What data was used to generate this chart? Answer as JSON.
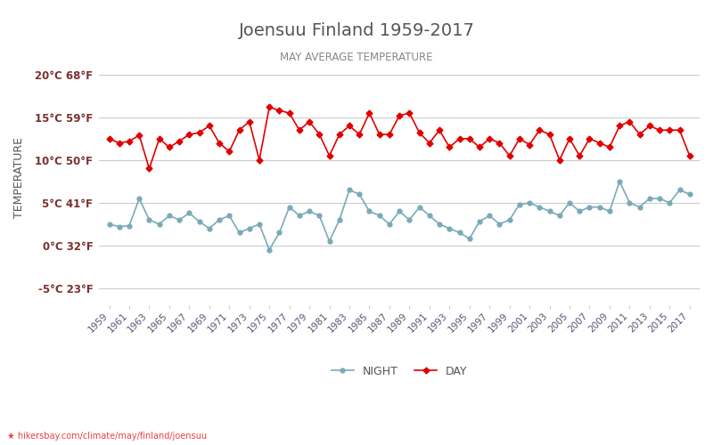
{
  "title": "Joensuu Finland 1959-2017",
  "subtitle": "MAY AVERAGE TEMPERATURE",
  "ylabel": "TEMPERATURE",
  "xlabel_url": "hikersbay.com/climate/may/finland/joensuu",
  "years": [
    1959,
    1960,
    1961,
    1962,
    1963,
    1964,
    1965,
    1966,
    1967,
    1968,
    1969,
    1970,
    1971,
    1972,
    1973,
    1974,
    1975,
    1976,
    1977,
    1978,
    1979,
    1980,
    1981,
    1982,
    1983,
    1984,
    1985,
    1986,
    1987,
    1988,
    1989,
    1990,
    1991,
    1992,
    1993,
    1994,
    1995,
    1996,
    1997,
    1998,
    1999,
    2000,
    2001,
    2002,
    2003,
    2004,
    2005,
    2006,
    2007,
    2008,
    2009,
    2010,
    2011,
    2012,
    2013,
    2014,
    2015,
    2016,
    2017
  ],
  "day_temps": [
    12.5,
    12.0,
    12.2,
    12.9,
    9.0,
    12.5,
    11.5,
    12.2,
    13.0,
    13.2,
    14.0,
    12.0,
    11.0,
    13.5,
    14.5,
    10.0,
    16.2,
    15.8,
    15.5,
    13.5,
    14.5,
    13.0,
    10.5,
    13.0,
    14.0,
    13.0,
    15.5,
    13.0,
    13.0,
    15.2,
    15.5,
    13.2,
    12.0,
    13.5,
    11.5,
    12.5,
    12.5,
    11.5,
    12.5,
    12.0,
    10.5,
    12.5,
    11.8,
    13.5,
    13.0,
    10.0,
    12.5,
    10.5,
    12.5,
    12.0,
    11.5,
    14.0,
    14.5,
    13.0,
    14.0,
    13.5,
    13.5,
    13.5,
    10.5
  ],
  "night_temps": [
    2.5,
    2.2,
    2.3,
    5.5,
    3.0,
    2.5,
    3.5,
    3.0,
    3.8,
    2.8,
    2.0,
    3.0,
    3.5,
    1.5,
    2.0,
    2.5,
    -0.5,
    1.5,
    4.5,
    3.5,
    4.0,
    3.5,
    0.5,
    3.0,
    6.5,
    6.0,
    4.0,
    3.5,
    2.5,
    4.0,
    3.0,
    4.5,
    3.5,
    2.5,
    2.0,
    1.5,
    0.8,
    2.8,
    3.5,
    2.5,
    3.0,
    4.8,
    5.0,
    4.5,
    4.0,
    3.5,
    5.0,
    4.0,
    4.5,
    4.5,
    4.0,
    7.5,
    5.0,
    4.5,
    5.5,
    5.5,
    5.0,
    6.5,
    6.0
  ],
  "day_color": "#e00000",
  "night_color": "#7aaab8",
  "title_color": "#555555",
  "subtitle_color": "#888888",
  "ylabel_color": "#555555",
  "tick_label_color": "#7a3030",
  "grid_color": "#cccccc",
  "background_color": "#ffffff",
  "ylim": [
    -7,
    23
  ],
  "yticks_c": [
    -5,
    0,
    5,
    10,
    15,
    20
  ],
  "yticks_f": [
    23,
    32,
    41,
    50,
    59,
    68
  ],
  "legend_night": "NIGHT",
  "legend_day": "DAY",
  "url_color": "#e84040",
  "logo_color": "#f0a000"
}
